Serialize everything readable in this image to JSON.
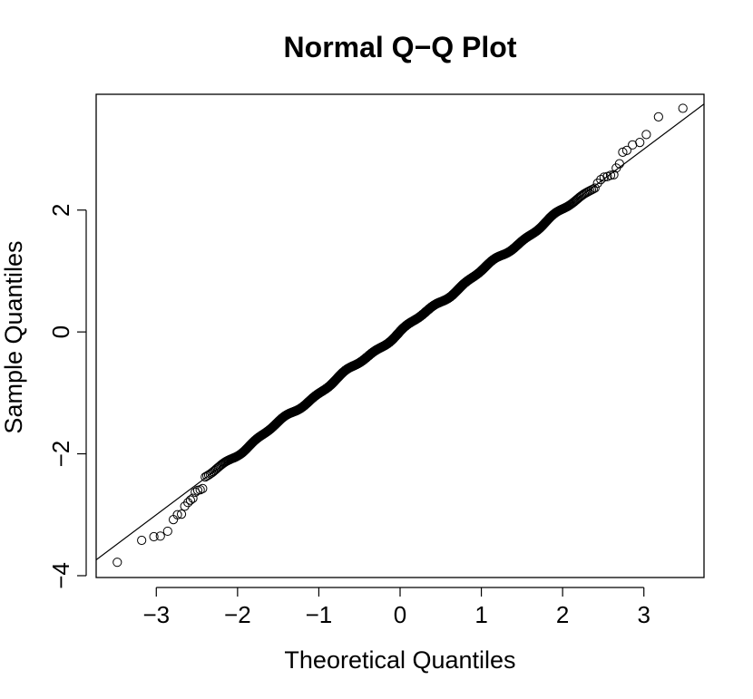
{
  "chart_data": {
    "type": "scatter",
    "title": "Normal Q−Q Plot",
    "xlabel": "Theoretical Quantiles",
    "ylabel": "Sample Quantiles",
    "xlim": [
      -3.74,
      3.74
    ],
    "ylim": [
      -4.03,
      3.9
    ],
    "x_ticks": [
      -3,
      -2,
      -1,
      0,
      1,
      2,
      3
    ],
    "x_tick_labels": [
      "−3",
      "−2",
      "−1",
      "0",
      "1",
      "2",
      "3"
    ],
    "y_ticks": [
      -4,
      -2,
      0,
      2
    ],
    "y_tick_labels": [
      "−4",
      "−2",
      "0",
      "2"
    ],
    "grid": false,
    "point_count": 2000,
    "reference_line": {
      "slope": 1.0,
      "intercept": 0.0
    },
    "tail_points": [
      [
        -3.48,
        -3.78
      ],
      [
        -3.18,
        -3.42
      ],
      [
        -3.03,
        -3.36
      ],
      [
        -2.95,
        -3.35
      ],
      [
        -2.86,
        -3.27
      ],
      [
        -2.79,
        -3.08
      ],
      [
        -2.74,
        -3.0
      ],
      [
        -2.69,
        -2.99
      ],
      [
        -2.65,
        -2.86
      ],
      [
        -2.61,
        -2.8
      ],
      [
        -2.58,
        -2.76
      ],
      [
        -2.55,
        -2.73
      ],
      [
        -2.52,
        -2.63
      ],
      [
        -2.49,
        -2.6
      ],
      [
        -2.46,
        -2.59
      ],
      [
        -2.43,
        -2.57
      ],
      [
        2.43,
        2.44
      ],
      [
        2.47,
        2.5
      ],
      [
        2.51,
        2.54
      ],
      [
        2.55,
        2.55
      ],
      [
        2.59,
        2.57
      ],
      [
        2.63,
        2.58
      ],
      [
        2.66,
        2.69
      ],
      [
        2.7,
        2.76
      ],
      [
        2.74,
        2.95
      ],
      [
        2.79,
        2.98
      ],
      [
        2.86,
        3.07
      ],
      [
        2.95,
        3.11
      ],
      [
        3.03,
        3.24
      ],
      [
        3.18,
        3.53
      ],
      [
        3.48,
        3.67
      ]
    ]
  }
}
